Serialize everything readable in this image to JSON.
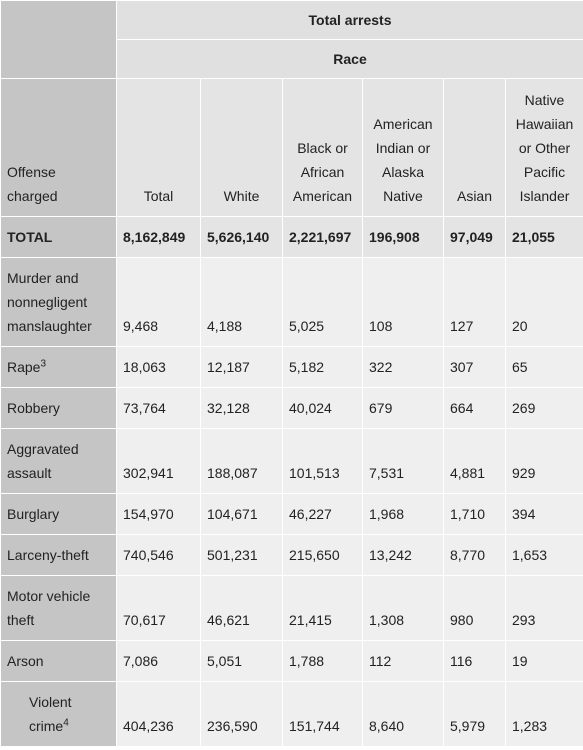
{
  "header": {
    "top": "Total arrests",
    "sub": "Race"
  },
  "columns": {
    "offense": "Offense charged",
    "total": "Total",
    "white": "White",
    "black": "Black or African American",
    "aian": "American Indian or Alaska Native",
    "asian": "Asian",
    "nhopi": "Native Hawaiian or Other Pacific Islander"
  },
  "rows": [
    {
      "label": "TOTAL",
      "note": "",
      "total": "8,162,849",
      "white": "5,626,140",
      "black": "2,221,697",
      "aian": "196,908",
      "asian": "97,049",
      "nhopi": "21,055"
    },
    {
      "label": "Murder and nonnegligent manslaughter",
      "note": "",
      "total": "9,468",
      "white": "4,188",
      "black": "5,025",
      "aian": "108",
      "asian": "127",
      "nhopi": "20"
    },
    {
      "label": "Rape",
      "note": "3",
      "total": "18,063",
      "white": "12,187",
      "black": "5,182",
      "aian": "322",
      "asian": "307",
      "nhopi": "65"
    },
    {
      "label": "Robbery",
      "note": "",
      "total": "73,764",
      "white": "32,128",
      "black": "40,024",
      "aian": "679",
      "asian": "664",
      "nhopi": "269"
    },
    {
      "label": "Aggravated assault",
      "note": "",
      "total": "302,941",
      "white": "188,087",
      "black": "101,513",
      "aian": "7,531",
      "asian": "4,881",
      "nhopi": "929"
    },
    {
      "label": "Burglary",
      "note": "",
      "total": "154,970",
      "white": "104,671",
      "black": "46,227",
      "aian": "1,968",
      "asian": "1,710",
      "nhopi": "394"
    },
    {
      "label": "Larceny-theft",
      "note": "",
      "total": "740,546",
      "white": "501,231",
      "black": "215,650",
      "aian": "13,242",
      "asian": "8,770",
      "nhopi": "1,653"
    },
    {
      "label": "Motor vehicle theft",
      "note": "",
      "total": "70,617",
      "white": "46,621",
      "black": "21,415",
      "aian": "1,308",
      "asian": "980",
      "nhopi": "293"
    },
    {
      "label": "Arson",
      "note": "",
      "total": "7,086",
      "white": "5,051",
      "black": "1,788",
      "aian": "112",
      "asian": "116",
      "nhopi": "19"
    },
    {
      "label": "Violent crime",
      "note": "4",
      "total": "404,236",
      "white": "236,590",
      "black": "151,744",
      "aian": "8,640",
      "asian": "5,979",
      "nhopi": "1,283"
    }
  ]
}
